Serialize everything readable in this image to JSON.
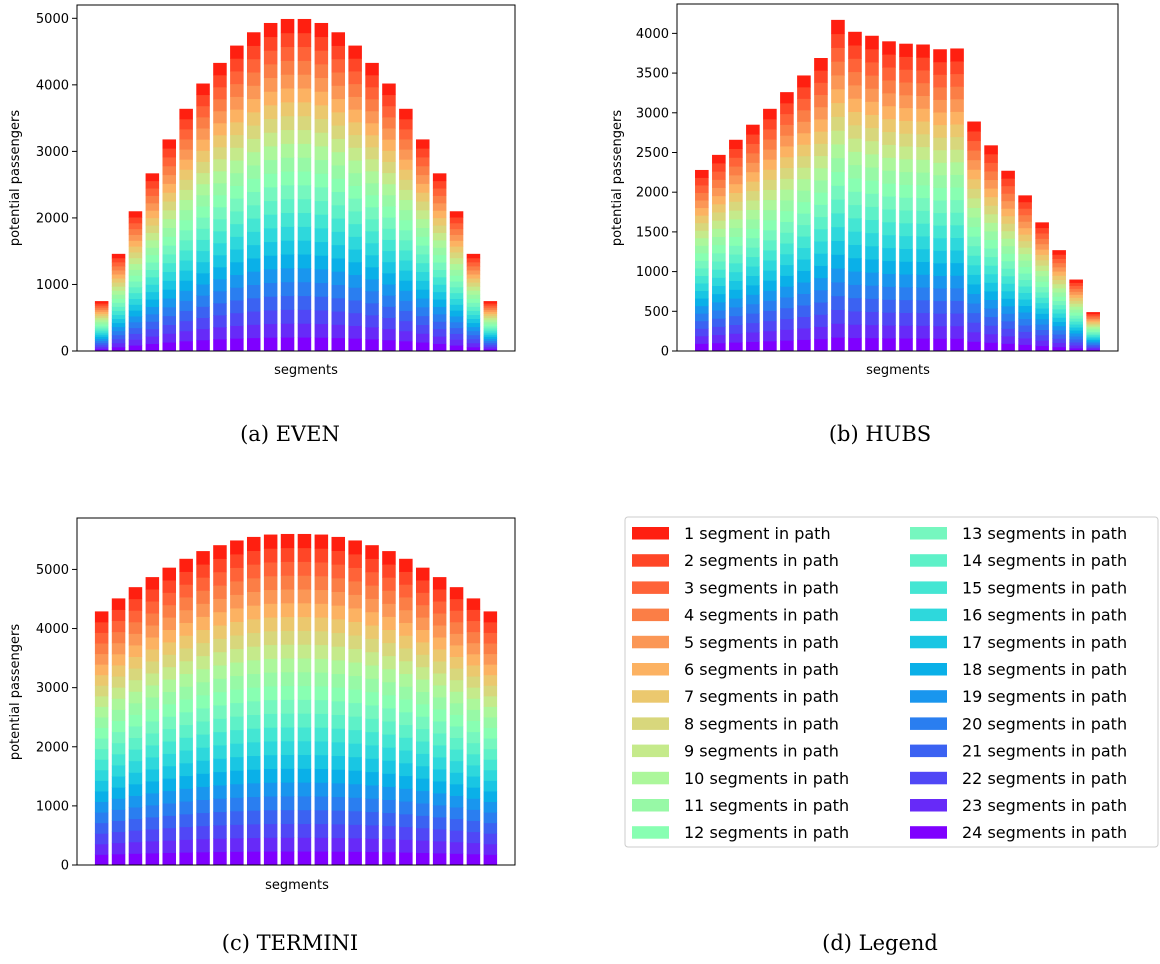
{
  "chart_data": [
    {
      "type": "bar",
      "stacked": true,
      "caption": "(a) EVEN",
      "xlabel": "segments",
      "ylabel": "potential passengers",
      "ylim": [
        0,
        5200
      ],
      "yticks": [
        0,
        1000,
        2000,
        3000,
        4000,
        5000
      ],
      "totals": [
        750,
        1460,
        2100,
        2670,
        3180,
        3640,
        4020,
        4330,
        4590,
        4790,
        4930,
        4990,
        4990,
        4930,
        4790,
        4590,
        4330,
        4020,
        3640,
        3180,
        2670,
        2100,
        1460,
        750
      ]
    },
    {
      "type": "bar",
      "stacked": true,
      "caption": "(b) HUBS",
      "xlabel": "segments",
      "ylabel": "potential passengers",
      "ylim": [
        0,
        4370
      ],
      "yticks": [
        0,
        500,
        1000,
        1500,
        2000,
        2500,
        3000,
        3500,
        4000
      ],
      "totals": [
        2280,
        2470,
        2660,
        2850,
        3050,
        3260,
        3470,
        3690,
        4170,
        4020,
        3970,
        3900,
        3870,
        3860,
        3800,
        3810,
        2890,
        2590,
        2270,
        1960,
        1620,
        1270,
        900,
        490
      ]
    },
    {
      "type": "bar",
      "stacked": true,
      "caption": "(c) TERMINI",
      "xlabel": "segments",
      "ylabel": "potential passengers",
      "ylim": [
        0,
        5870
      ],
      "yticks": [
        0,
        1000,
        2000,
        3000,
        4000,
        5000
      ],
      "totals": [
        4290,
        4510,
        4700,
        4870,
        5030,
        5180,
        5310,
        5410,
        5490,
        5550,
        5590,
        5600,
        5600,
        5590,
        5550,
        5490,
        5410,
        5310,
        5180,
        5030,
        4870,
        4700,
        4510,
        4290
      ]
    }
  ],
  "legend": {
    "caption": "(d) Legend",
    "entries": [
      {
        "label": "1 segment in path",
        "color": "#ff1f10"
      },
      {
        "label": "2 segments in path",
        "color": "#ff4627"
      },
      {
        "label": "3 segments in path",
        "color": "#ff6338"
      },
      {
        "label": "4 segments in path",
        "color": "#fb7e46"
      },
      {
        "label": "5 segments in path",
        "color": "#fb9756"
      },
      {
        "label": "6 segments in path",
        "color": "#fcb262"
      },
      {
        "label": "7 segments in path",
        "color": "#ebc86e"
      },
      {
        "label": "8 segments in path",
        "color": "#d8d77c"
      },
      {
        "label": "9 segments in path",
        "color": "#c5ea8b"
      },
      {
        "label": "10 segments in path",
        "color": "#acf79b"
      },
      {
        "label": "11 segments in path",
        "color": "#97f9a6"
      },
      {
        "label": "12 segments in path",
        "color": "#88ffb2"
      },
      {
        "label": "13 segments in path",
        "color": "#76f7bf"
      },
      {
        "label": "14 segments in path",
        "color": "#5ef1c8"
      },
      {
        "label": "15 segments in path",
        "color": "#44e6d3"
      },
      {
        "label": "16 segments in path",
        "color": "#2ed8dc"
      },
      {
        "label": "17 segments in path",
        "color": "#19c6e3"
      },
      {
        "label": "18 segments in path",
        "color": "#0ab0e8"
      },
      {
        "label": "19 segments in path",
        "color": "#1996ee"
      },
      {
        "label": "20 segments in path",
        "color": "#2a7ef0"
      },
      {
        "label": "21 segments in path",
        "color": "#3b62f2"
      },
      {
        "label": "22 segments in path",
        "color": "#5047f6"
      },
      {
        "label": "23 segments in path",
        "color": "#672af8"
      },
      {
        "label": "24 segments in path",
        "color": "#7f00ff"
      }
    ]
  }
}
